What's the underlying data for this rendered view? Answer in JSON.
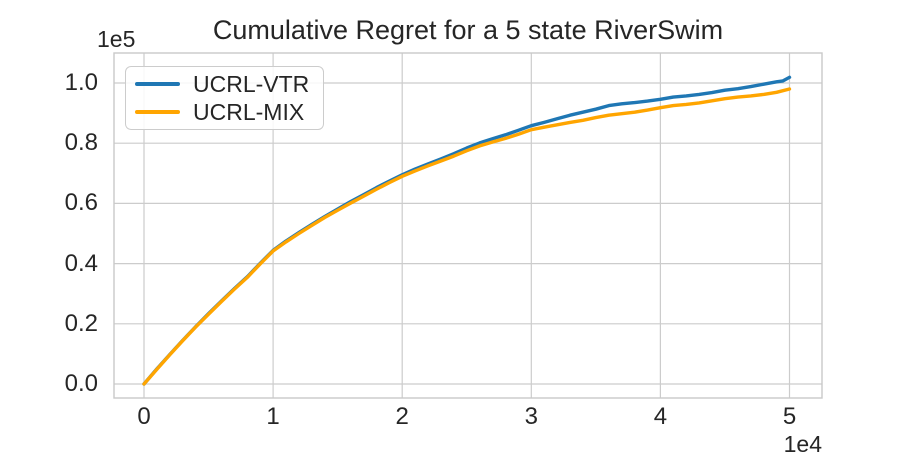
{
  "figure": {
    "title": "Cumulative Regret for a 5 state RiverSwim",
    "y_offset_label": "1e5",
    "x_offset_label": "1e4"
  },
  "legend": {
    "position": "upper left",
    "entries": [
      {
        "label": "UCRL-VTR",
        "color": "#1f77b4"
      },
      {
        "label": "UCRL-MIX",
        "color": "#ffa500"
      }
    ]
  },
  "colors": {
    "text": "#262626",
    "grid": "#cccccc",
    "frame": "#c9c9c9",
    "background": "#ffffff",
    "series_blue": "#1f77b4",
    "series_orange": "#ffa500"
  },
  "chart_data": {
    "type": "line",
    "title": "Cumulative Regret for a 5 state RiverSwim",
    "xlabel": "",
    "ylabel": "",
    "x_offset_label": "1e4",
    "y_offset_label": "1e5",
    "xlim": [
      -0.25,
      5.25
    ],
    "ylim": [
      -0.05,
      1.1
    ],
    "x_ticks": [
      "0",
      "1",
      "2",
      "3",
      "4",
      "5"
    ],
    "y_ticks": [
      "0.0",
      "0.2",
      "0.4",
      "0.6",
      "0.8",
      "1.0"
    ],
    "grid": true,
    "legend_position": "upper left",
    "series": [
      {
        "name": "UCRL-VTR",
        "color": "#1f77b4",
        "points": [
          [
            0,
            0
          ],
          [
            0.1,
            0.05
          ],
          [
            0.2,
            0.098
          ],
          [
            0.3,
            0.145
          ],
          [
            0.4,
            0.19
          ],
          [
            0.5,
            0.234
          ],
          [
            0.6,
            0.276
          ],
          [
            0.7,
            0.317
          ],
          [
            0.8,
            0.356
          ],
          [
            0.9,
            0.401
          ],
          [
            1,
            0.444
          ],
          [
            1.1,
            0.475
          ],
          [
            1.2,
            0.503
          ],
          [
            1.3,
            0.53
          ],
          [
            1.4,
            0.556
          ],
          [
            1.5,
            0.581
          ],
          [
            1.6,
            0.606
          ],
          [
            1.7,
            0.629
          ],
          [
            1.8,
            0.652
          ],
          [
            1.9,
            0.674
          ],
          [
            2,
            0.695
          ],
          [
            2.1,
            0.714
          ],
          [
            2.2,
            0.731
          ],
          [
            2.3,
            0.748
          ],
          [
            2.4,
            0.765
          ],
          [
            2.5,
            0.784
          ],
          [
            2.6,
            0.801
          ],
          [
            2.7,
            0.815
          ],
          [
            2.8,
            0.828
          ],
          [
            2.9,
            0.843
          ],
          [
            3,
            0.858
          ],
          [
            3.1,
            0.869
          ],
          [
            3.2,
            0.881
          ],
          [
            3.3,
            0.893
          ],
          [
            3.4,
            0.903
          ],
          [
            3.5,
            0.913
          ],
          [
            3.6,
            0.925
          ],
          [
            3.7,
            0.931
          ],
          [
            3.8,
            0.935
          ],
          [
            3.9,
            0.94
          ],
          [
            4,
            0.946
          ],
          [
            4.1,
            0.953
          ],
          [
            4.2,
            0.957
          ],
          [
            4.3,
            0.962
          ],
          [
            4.4,
            0.968
          ],
          [
            4.5,
            0.976
          ],
          [
            4.6,
            0.981
          ],
          [
            4.7,
            0.988
          ],
          [
            4.8,
            0.996
          ],
          [
            4.9,
            1.004
          ],
          [
            4.95,
            1.007
          ],
          [
            5,
            1.019
          ]
        ]
      },
      {
        "name": "UCRL-MIX",
        "color": "#ffa500",
        "points": [
          [
            0,
            0
          ],
          [
            0.1,
            0.049
          ],
          [
            0.2,
            0.097
          ],
          [
            0.3,
            0.144
          ],
          [
            0.4,
            0.189
          ],
          [
            0.5,
            0.232
          ],
          [
            0.6,
            0.274
          ],
          [
            0.7,
            0.315
          ],
          [
            0.8,
            0.354
          ],
          [
            0.9,
            0.399
          ],
          [
            1,
            0.442
          ],
          [
            1.1,
            0.472
          ],
          [
            1.2,
            0.5
          ],
          [
            1.3,
            0.527
          ],
          [
            1.4,
            0.553
          ],
          [
            1.5,
            0.577
          ],
          [
            1.6,
            0.601
          ],
          [
            1.7,
            0.624
          ],
          [
            1.8,
            0.647
          ],
          [
            1.9,
            0.669
          ],
          [
            2,
            0.69
          ],
          [
            2.1,
            0.708
          ],
          [
            2.2,
            0.725
          ],
          [
            2.3,
            0.741
          ],
          [
            2.4,
            0.757
          ],
          [
            2.5,
            0.775
          ],
          [
            2.6,
            0.791
          ],
          [
            2.7,
            0.804
          ],
          [
            2.8,
            0.816
          ],
          [
            2.9,
            0.83
          ],
          [
            3,
            0.845
          ],
          [
            3.1,
            0.853
          ],
          [
            3.2,
            0.861
          ],
          [
            3.3,
            0.869
          ],
          [
            3.4,
            0.876
          ],
          [
            3.5,
            0.885
          ],
          [
            3.6,
            0.893
          ],
          [
            3.7,
            0.898
          ],
          [
            3.8,
            0.903
          ],
          [
            3.9,
            0.91
          ],
          [
            4,
            0.918
          ],
          [
            4.1,
            0.925
          ],
          [
            4.2,
            0.929
          ],
          [
            4.3,
            0.934
          ],
          [
            4.4,
            0.941
          ],
          [
            4.5,
            0.948
          ],
          [
            4.6,
            0.953
          ],
          [
            4.7,
            0.957
          ],
          [
            4.8,
            0.962
          ],
          [
            4.9,
            0.969
          ],
          [
            5,
            0.98
          ]
        ]
      }
    ]
  }
}
